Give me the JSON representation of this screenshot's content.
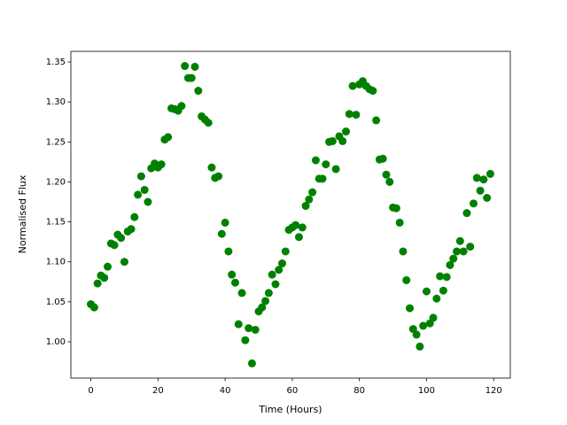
{
  "chart_data": {
    "type": "scatter",
    "xlabel": "Time (Hours)",
    "ylabel": "Normalised Flux",
    "color": "#008000",
    "x": [
      0,
      1,
      2,
      3,
      4,
      5,
      6,
      7,
      8,
      9,
      10,
      11,
      12,
      13,
      14,
      15,
      16,
      17,
      18,
      19,
      20,
      21,
      22,
      23,
      24,
      25,
      26,
      27,
      28,
      29,
      30,
      31,
      32,
      33,
      34,
      35,
      36,
      37,
      38,
      39,
      40,
      41,
      42,
      43,
      44,
      45,
      46,
      47,
      48,
      49,
      50,
      51,
      52,
      53,
      54,
      55,
      56,
      57,
      58,
      59,
      60,
      61,
      62,
      63,
      64,
      65,
      66,
      67,
      68,
      69,
      70,
      71,
      72,
      73,
      74,
      75,
      76,
      77,
      78,
      79,
      80,
      81,
      82,
      83,
      84,
      85,
      86,
      87,
      88,
      89,
      90,
      91,
      92,
      93,
      94,
      95,
      96,
      97,
      98,
      99,
      100,
      101,
      102,
      103,
      104,
      105,
      106,
      107,
      108,
      109,
      110,
      111,
      112,
      113,
      114,
      115,
      116,
      117,
      118,
      119
    ],
    "values": [
      1.047,
      1.043,
      1.073,
      1.083,
      1.08,
      1.094,
      1.123,
      1.121,
      1.134,
      1.13,
      1.1,
      1.138,
      1.141,
      1.156,
      1.184,
      1.207,
      1.19,
      1.175,
      1.217,
      1.223,
      1.218,
      1.222,
      1.253,
      1.256,
      1.292,
      1.291,
      1.289,
      1.295,
      1.345,
      1.33,
      1.33,
      1.344,
      1.314,
      1.282,
      1.278,
      1.274,
      1.218,
      1.205,
      1.207,
      1.135,
      1.149,
      1.113,
      1.084,
      1.074,
      1.022,
      1.061,
      1.002,
      1.017,
      0.973,
      1.015,
      1.038,
      1.043,
      1.051,
      1.061,
      1.084,
      1.072,
      1.09,
      1.098,
      1.113,
      1.14,
      1.143,
      1.146,
      1.131,
      1.143,
      1.17,
      1.178,
      1.187,
      1.227,
      1.204,
      1.204,
      1.222,
      1.25,
      1.251,
      1.216,
      1.257,
      1.251,
      1.263,
      1.285,
      1.32,
      1.284,
      1.322,
      1.326,
      1.32,
      1.316,
      1.314,
      1.277,
      1.228,
      1.229,
      1.209,
      1.2,
      1.168,
      1.167,
      1.149,
      1.113,
      1.077,
      1.042,
      1.016,
      1.009,
      0.994,
      1.02,
      1.063,
      1.023,
      1.03,
      1.054,
      1.082,
      1.064,
      1.081,
      1.096,
      1.104,
      1.113,
      1.126,
      1.113,
      1.161,
      1.119,
      1.173,
      1.205,
      1.189,
      1.203,
      1.18,
      1.21
    ],
    "xlim": [
      -5.95,
      124.95
    ],
    "ylim": [
      0.9546,
      1.3633
    ],
    "xticks": [
      0,
      20,
      40,
      60,
      80,
      100,
      120
    ],
    "yticks": [
      {
        "value": 1.0,
        "label": "1.00"
      },
      1.05,
      {
        "value": 1.1,
        "label": "1.10"
      },
      1.15,
      {
        "value": 1.2,
        "label": "1.20"
      },
      1.25,
      {
        "value": 1.3,
        "label": "1.30"
      },
      1.35
    ]
  }
}
